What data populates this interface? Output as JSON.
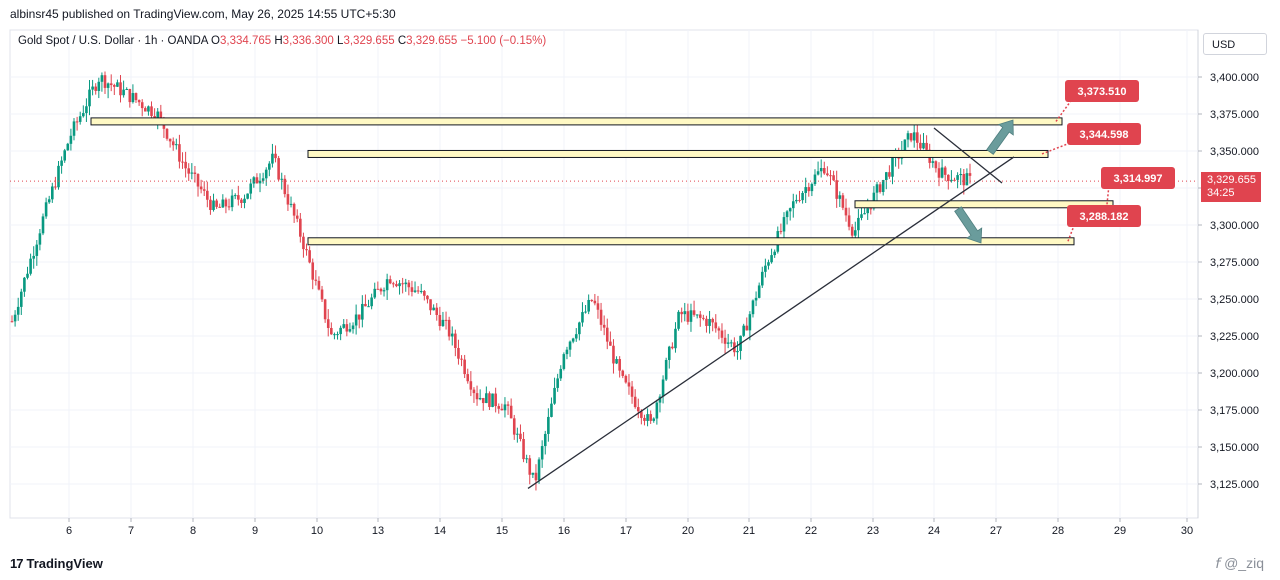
{
  "header": {
    "published": "albinsr45 published on TradingView.com, May 26, 2025 14:55 UTC+5:30"
  },
  "symbol": {
    "name": "Gold Spot / U.S. Dollar · 1h · OANDA",
    "o_label": "O",
    "o": "3,334.765",
    "h_label": "H",
    "h": "3,336.300",
    "l_label": "L",
    "l": "3,329.655",
    "c_label": "C",
    "c": "3,329.655",
    "change": "−5.100 (−0.15%)"
  },
  "currency": "USD",
  "last_price": {
    "value": "3,329.655",
    "countdown": "34:25"
  },
  "footer": {
    "logo": "TradingView",
    "watermark": "𝘧 @_ziq"
  },
  "colors": {
    "up": "#089981",
    "down": "#e0444f",
    "zone_fill": "#fff9c4",
    "label_bg": "#e0444f",
    "arrow": "#6a9c9c"
  },
  "chart_data": {
    "type": "candlestick",
    "y_axis": {
      "ticks": [
        "3,125.000",
        "3,150.000",
        "3,175.000",
        "3,200.000",
        "3,225.000",
        "3,250.000",
        "3,275.000",
        "3,300.000",
        "3,325.000",
        "3,350.000",
        "3,375.000",
        "3,400.000"
      ],
      "range": [
        3110,
        3420
      ]
    },
    "x_axis": {
      "ticks": [
        "6",
        "7",
        "8",
        "9",
        "10",
        "13",
        "14",
        "15",
        "16",
        "17",
        "20",
        "21",
        "22",
        "23",
        "24",
        "27",
        "28",
        "29",
        "30"
      ]
    },
    "price_path": [
      [
        0,
        3235
      ],
      [
        1,
        3300
      ],
      [
        2,
        3360
      ],
      [
        3,
        3400
      ],
      [
        4,
        3388
      ],
      [
        5,
        3375
      ],
      [
        6,
        3338
      ],
      [
        7,
        3310
      ],
      [
        8,
        3320
      ],
      [
        9,
        3345
      ],
      [
        10,
        3290
      ],
      [
        11,
        3225
      ],
      [
        12,
        3240
      ],
      [
        13,
        3265
      ],
      [
        14,
        3255
      ],
      [
        15,
        3230
      ],
      [
        16,
        3185
      ],
      [
        17,
        3178
      ],
      [
        18,
        3125
      ],
      [
        19,
        3215
      ],
      [
        20,
        3250
      ],
      [
        21,
        3195
      ],
      [
        22,
        3165
      ],
      [
        23,
        3240
      ],
      [
        24,
        3235
      ],
      [
        25,
        3215
      ],
      [
        26,
        3275
      ],
      [
        27,
        3318
      ],
      [
        28,
        3340
      ],
      [
        29,
        3295
      ],
      [
        30,
        3330
      ],
      [
        31,
        3362
      ],
      [
        32,
        3335
      ],
      [
        33,
        3329.655
      ]
    ],
    "zones": [
      {
        "label": "3,373.510",
        "price": 3370,
        "from_tick": "6"
      },
      {
        "label": "3,344.598",
        "price": 3348,
        "from_tick": "10"
      },
      {
        "label": "3,314.997",
        "price": 3314,
        "from_tick": "23"
      },
      {
        "label": "3,288.182",
        "price": 3289,
        "from_tick": "10"
      }
    ],
    "trendline": {
      "from": [
        "15",
        3122
      ],
      "to": [
        "27",
        3346
      ]
    },
    "arrows": [
      {
        "direction": "up"
      },
      {
        "direction": "down"
      }
    ],
    "grid": true
  }
}
